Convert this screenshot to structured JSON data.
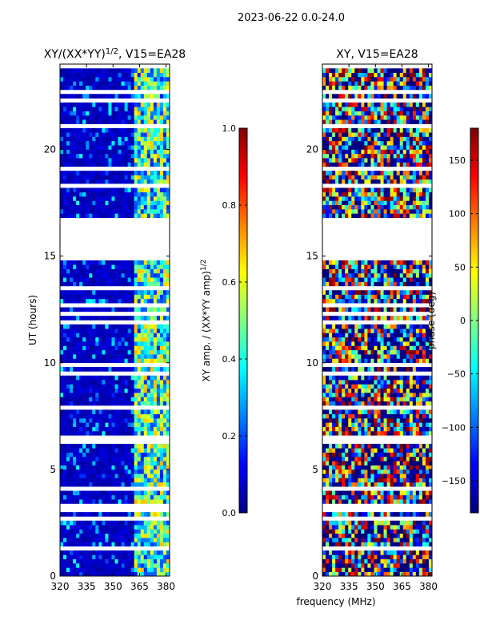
{
  "suptitle": "2023-06-22 0.0-24.0",
  "colors": {
    "jet": [
      "#00007f",
      "#0000ff",
      "#007fff",
      "#00ffff",
      "#7fff7f",
      "#ffff00",
      "#ff7f00",
      "#ff0000",
      "#7f0000"
    ],
    "background": "#ffffff",
    "axis": "#000000"
  },
  "chart_data": [
    {
      "type": "heatmap",
      "title": "XY/(XX*YY)",
      "title_superscript": "1/2",
      "title_suffix": ", V15=EA28",
      "xlabel": "",
      "ylabel": "UT (hours)",
      "xlim": [
        320,
        382
      ],
      "ylim": [
        0,
        24
      ],
      "xticks": [
        "320",
        "335",
        "350",
        "365",
        "380"
      ],
      "xtick_values": [
        320,
        335,
        350,
        365,
        380
      ],
      "yticks": [
        "0",
        "5",
        "10",
        "15",
        "20"
      ],
      "ytick_values": [
        0,
        5,
        10,
        15,
        20
      ],
      "data_gap_hours": [
        15,
        16.9
      ],
      "colorbar": {
        "label": "XY amp. / (XX*YY amp)",
        "label_superscript": "1/2",
        "range": [
          0.0,
          1.0
        ],
        "ticks": [
          "0.0",
          "0.2",
          "0.4",
          "0.6",
          "0.8",
          "1.0"
        ],
        "tick_values": [
          0.0,
          0.2,
          0.4,
          0.6,
          0.8,
          1.0
        ]
      }
    },
    {
      "type": "heatmap",
      "title": "XY, V15=EA28",
      "xlabel": "frequency (MHz)",
      "ylabel": "",
      "xlim": [
        320,
        382
      ],
      "ylim": [
        0,
        24
      ],
      "xticks": [
        "320",
        "335",
        "350",
        "365",
        "380"
      ],
      "xtick_values": [
        320,
        335,
        350,
        365,
        380
      ],
      "yticks": [
        "0",
        "5",
        "10",
        "15",
        "20"
      ],
      "ytick_values": [
        0,
        5,
        10,
        15,
        20
      ],
      "data_gap_hours": [
        15,
        16.9
      ],
      "colorbar": {
        "label": "phase (deg)",
        "range": [
          -180,
          180
        ],
        "ticks": [
          "−150",
          "−100",
          "−50",
          "0",
          "50",
          "100",
          "150"
        ],
        "tick_values": [
          -150,
          -100,
          -50,
          0,
          50,
          100,
          150
        ]
      }
    }
  ]
}
